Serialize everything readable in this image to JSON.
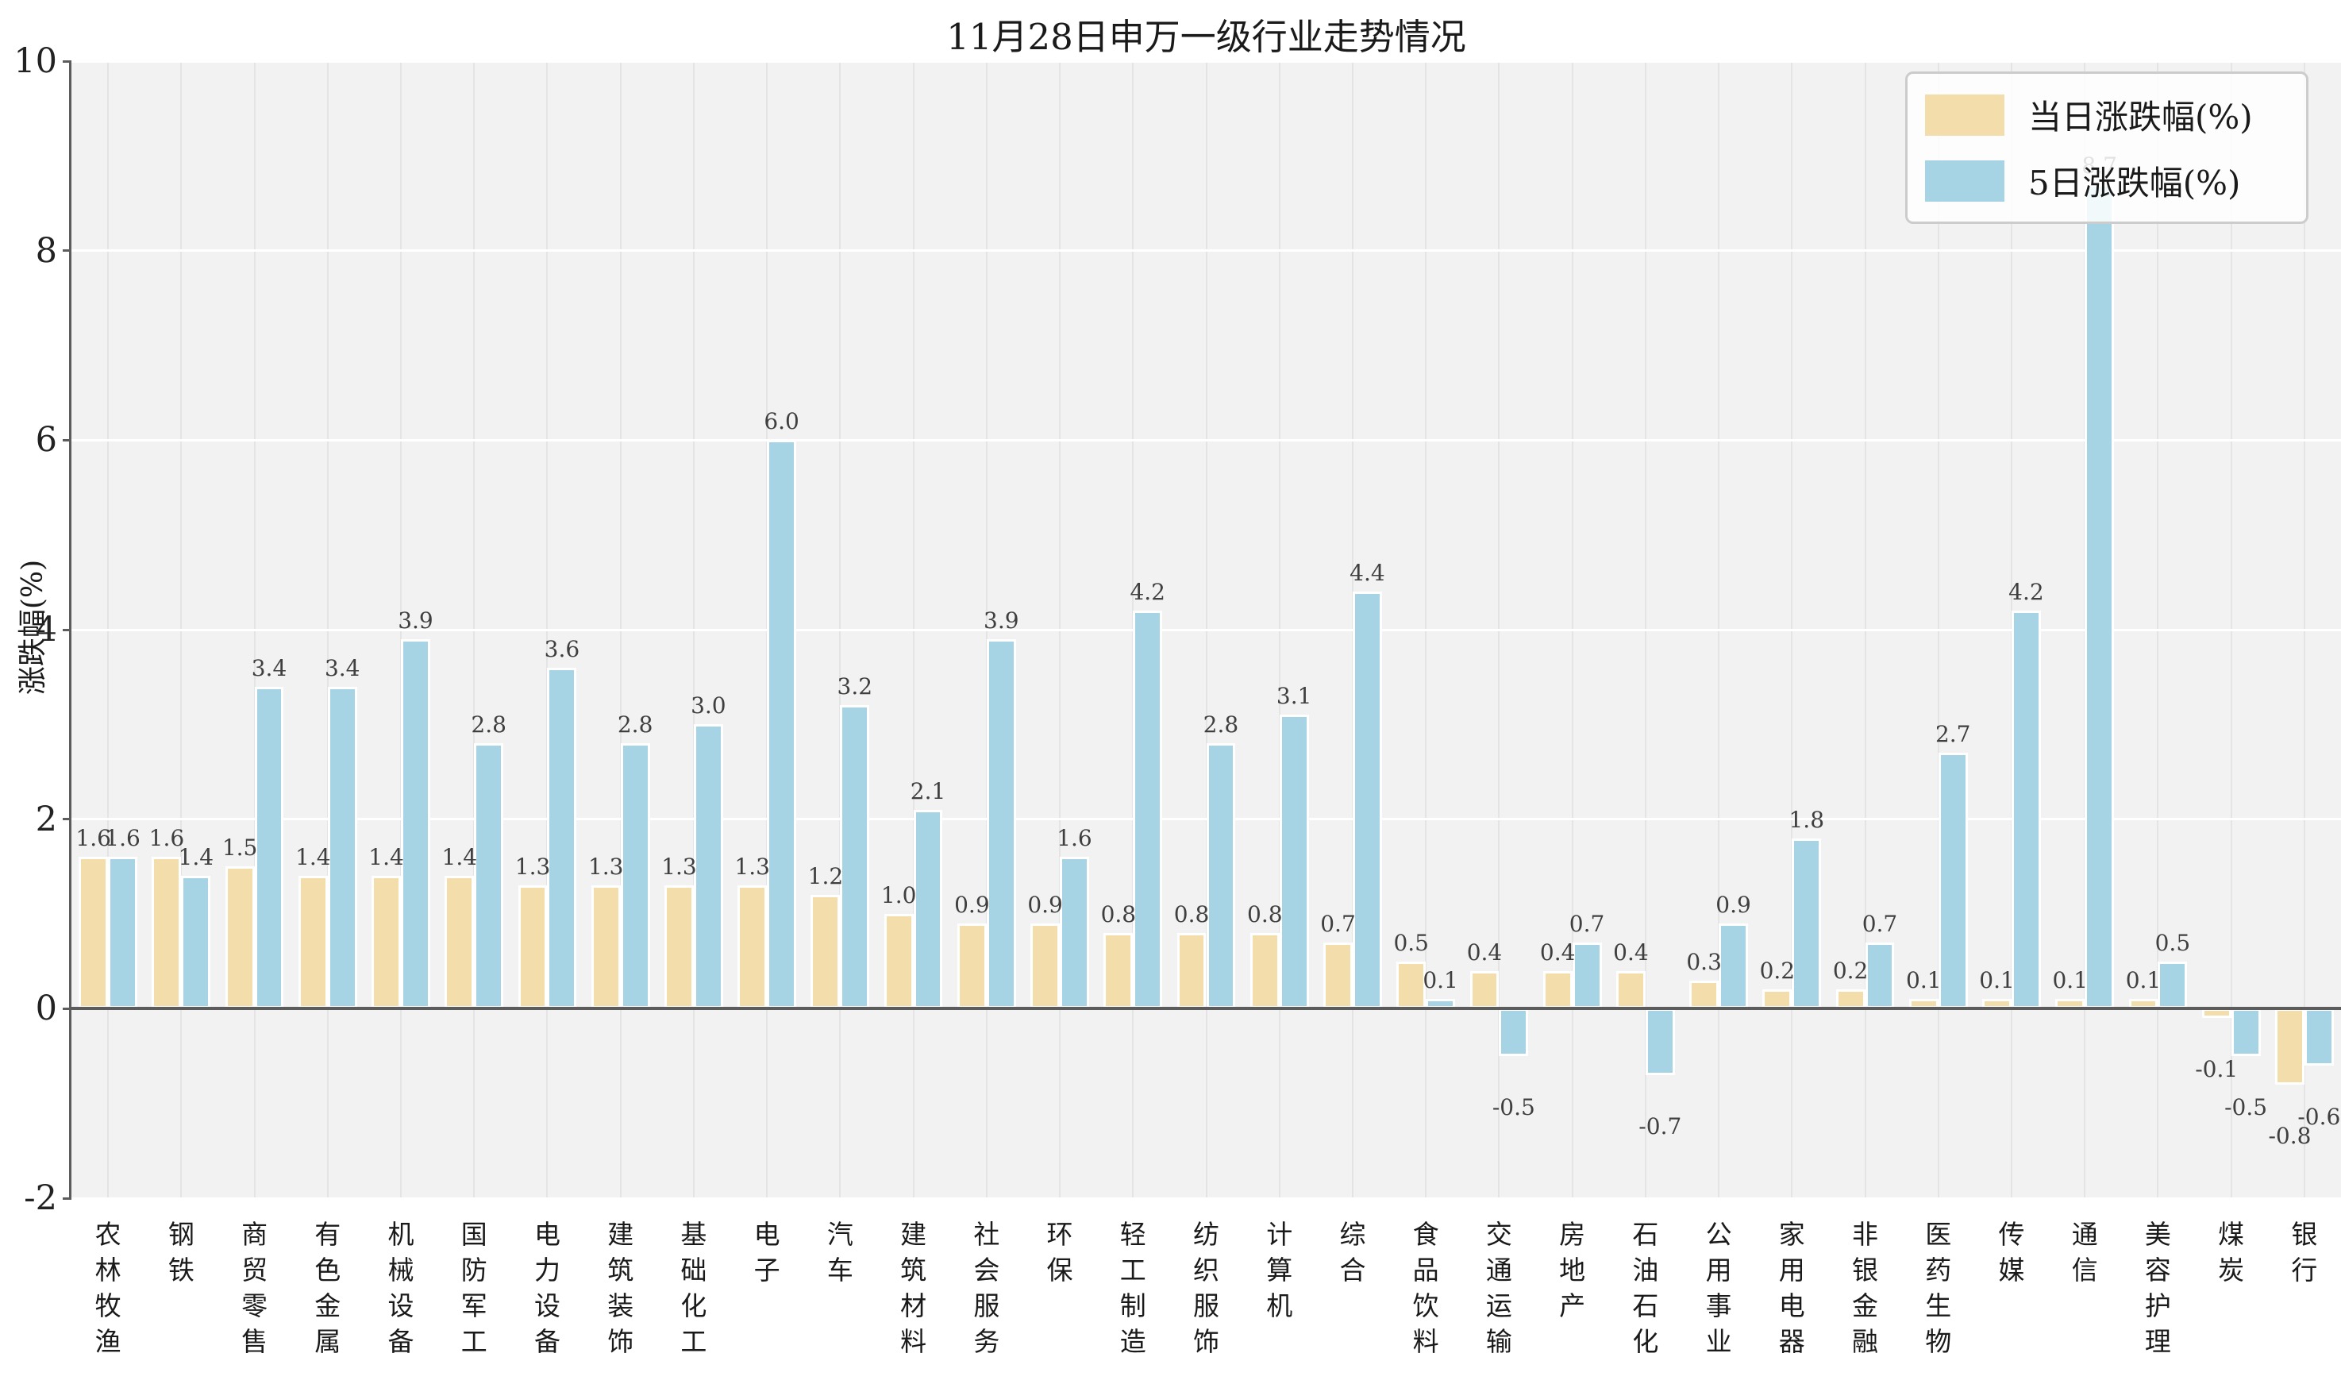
{
  "chart_data": {
    "type": "bar",
    "title": "11月28日申万一级行业走势情况",
    "xlabel": "",
    "ylabel": "涨跌幅(%)",
    "ylim": [
      -2,
      10
    ],
    "yticks": [
      -2,
      0,
      2,
      4,
      6,
      8,
      10
    ],
    "grid": true,
    "legend_position": "upper right",
    "categories": [
      "农林牧渔",
      "钢铁",
      "商贸零售",
      "有色金属",
      "机械设备",
      "国防军工",
      "电力设备",
      "建筑装饰",
      "基础化工",
      "电子",
      "汽车",
      "建筑材料",
      "社会服务",
      "环保",
      "轻工制造",
      "纺织服饰",
      "计算机",
      "综合",
      "食品饮料",
      "交通运输",
      "房地产",
      "石油石化",
      "公用事业",
      "家用电器",
      "非银金融",
      "医药生物",
      "传媒",
      "通信",
      "美容护理",
      "煤炭",
      "银行"
    ],
    "series": [
      {
        "name": "当日涨跌幅(%)",
        "color": "#f2ddab",
        "values": [
          1.6,
          1.6,
          1.5,
          1.4,
          1.4,
          1.4,
          1.3,
          1.3,
          1.3,
          1.3,
          1.2,
          1.0,
          0.9,
          0.9,
          0.8,
          0.8,
          0.8,
          0.7,
          0.5,
          0.4,
          0.4,
          0.4,
          0.3,
          0.2,
          0.2,
          0.1,
          0.1,
          0.1,
          0.1,
          -0.1,
          -0.8
        ]
      },
      {
        "name": "5日涨跌幅(%)",
        "color": "#a7d4e4",
        "values": [
          1.6,
          1.4,
          3.4,
          3.4,
          3.9,
          2.8,
          3.6,
          2.8,
          3.0,
          6.0,
          3.2,
          2.1,
          3.9,
          1.6,
          4.2,
          2.8,
          3.1,
          4.4,
          0.1,
          -0.5,
          0.7,
          -0.7,
          0.9,
          1.8,
          0.7,
          2.7,
          4.2,
          8.7,
          0.5,
          -0.5,
          -0.6
        ]
      }
    ],
    "style": {
      "plot_bg": "#f2f2f2",
      "h_grid": "#ffffff",
      "v_grid": "#e4e4e4",
      "axis": "#5c5c5c",
      "label_color": "#3f3f3f"
    }
  }
}
